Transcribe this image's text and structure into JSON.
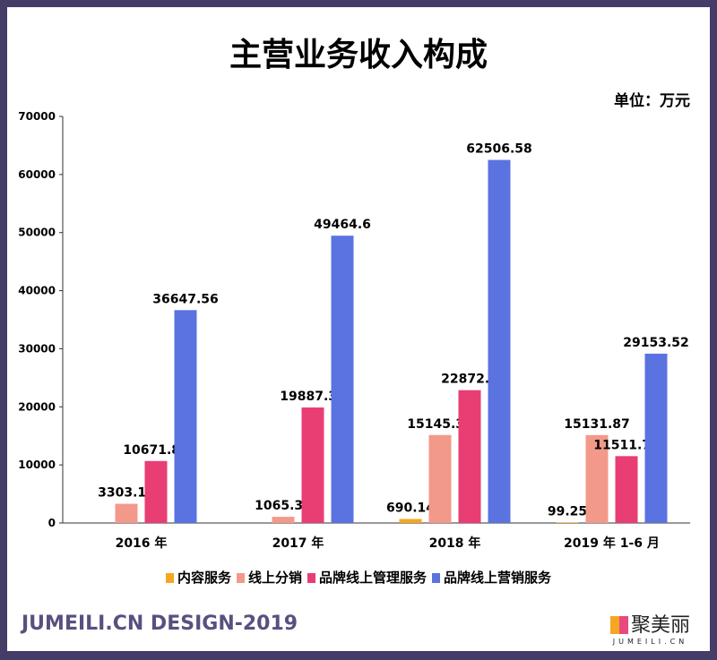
{
  "chart_data": {
    "type": "bar",
    "title": "主营业务收入构成",
    "unit_label": "单位：万元",
    "categories": [
      "2016 年",
      "2017 年",
      "2018 年",
      "2019 年 1-6 月"
    ],
    "ylim": [
      0,
      70000
    ],
    "yticks": [
      0,
      10000,
      20000,
      30000,
      40000,
      50000,
      60000,
      70000
    ],
    "grid": false,
    "legend_placement": "bottom",
    "series": [
      {
        "name": "内容服务",
        "color": "#f5a623",
        "values": [
          null,
          null,
          690.14,
          99.25
        ],
        "labels": [
          "",
          "",
          "690.14",
          "99.25"
        ]
      },
      {
        "name": "线上分销",
        "color": "#f3998a",
        "values": [
          3303.16,
          1065.35,
          15145.32,
          15131.87
        ],
        "labels": [
          "3303.16",
          "1065.35",
          "15145.32",
          "15131.87"
        ]
      },
      {
        "name": "品牌线上管理服务",
        "color": "#e83e74",
        "values": [
          10671.88,
          19887.34,
          22872.5,
          11511.76
        ],
        "labels": [
          "10671.88",
          "19887.34",
          "22872.5",
          "11511.76"
        ]
      },
      {
        "name": "品牌线上营销服务",
        "color": "#5b73e0",
        "values": [
          36647.56,
          49464.6,
          62506.58,
          29153.52
        ],
        "labels": [
          "36647.56",
          "49464.6",
          "62506.58",
          "29153.52"
        ]
      }
    ]
  },
  "footer": {
    "text": "JUMEILI.CN DESIGN-2019",
    "logo_cn": "聚美丽",
    "logo_en": "JUMEILI.CN"
  },
  "watermark": "JUMEILI.CN"
}
